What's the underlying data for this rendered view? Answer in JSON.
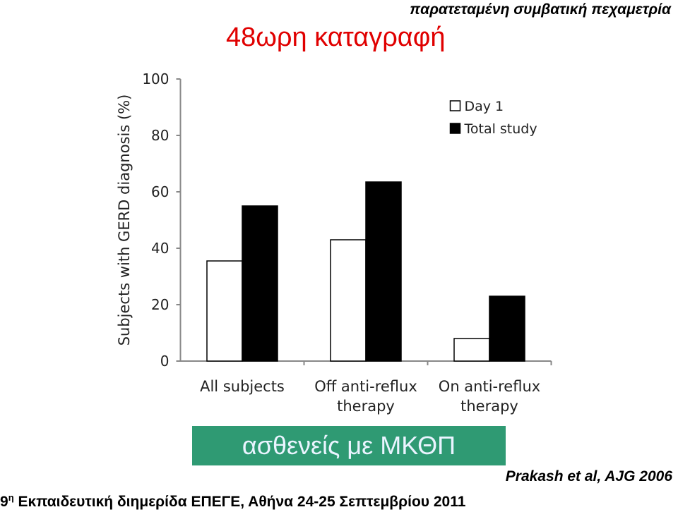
{
  "subtitle": "παρατεταμένη συμβατική πεχαμετρία",
  "title": "48ωρη καταγραφή",
  "banner": "ασθενείς με ΜΚΘΠ",
  "citation": "Prakash et al, AJG 2006",
  "footer": {
    "number": "9",
    "superscript": "η",
    "text": "Εκπαιδευτική διημερίδα ΕΠΕΓΕ, Αθήνα 24-25 Σεπτεμβρίου 2011"
  },
  "chart_data": {
    "type": "bar",
    "y_label": "Subjects with GERD diagnosis (%)",
    "categories": [
      "All subjects",
      "Off anti-reflux therapy",
      "On anti-reflux therapy"
    ],
    "series": [
      {
        "name": "Day 1",
        "color": "#ffffff",
        "values": [
          35.5,
          43,
          8
        ]
      },
      {
        "name": "Total study",
        "color": "#000000",
        "values": [
          55,
          63.5,
          23
        ]
      }
    ],
    "ylim": [
      0,
      100
    ],
    "yticks": [
      0,
      20,
      40,
      60,
      80,
      100
    ],
    "legend": "upper right"
  }
}
